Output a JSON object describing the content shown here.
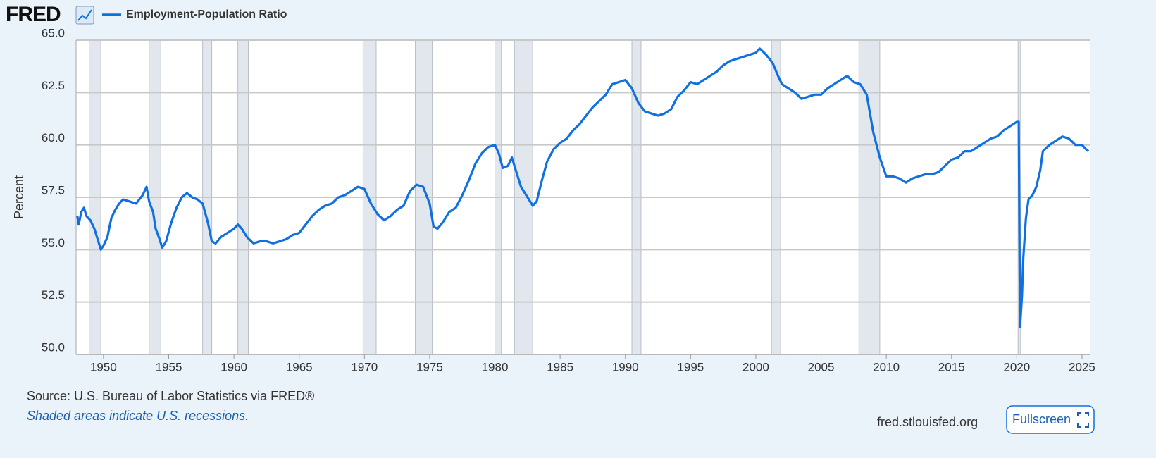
{
  "chart_data": {
    "type": "line",
    "brand": "FRED",
    "ylabel": "Percent",
    "source": "Source: U.S. Bureau of Labor Statistics via FRED®",
    "note": "Shaded areas indicate U.S. recessions.",
    "site": "fred.stlouisfed.org",
    "button": "Fullscreen",
    "xlim": [
      1947.9,
      2025.65
    ],
    "ylim": [
      50,
      65
    ],
    "xticks": [
      1950,
      1955,
      1960,
      1965,
      1970,
      1975,
      1980,
      1985,
      1990,
      1995,
      2000,
      2005,
      2010,
      2015,
      2020,
      2025
    ],
    "yticks": [
      {
        "value": 50,
        "label": "50.0"
      },
      {
        "value": 52.5,
        "label": "52.5"
      },
      {
        "value": 55,
        "label": "55.0"
      },
      {
        "value": 57.5,
        "label": "57.5"
      },
      {
        "value": 60,
        "label": "60.0"
      },
      {
        "value": 62.5,
        "label": "62.5"
      },
      {
        "value": 65,
        "label": "65.0"
      }
    ],
    "grid": true,
    "recessions": [
      [
        1948.9,
        1949.8
      ],
      [
        1953.5,
        1954.4
      ],
      [
        1957.6,
        1958.3
      ],
      [
        1960.3,
        1961.1
      ],
      [
        1969.9,
        1970.9
      ],
      [
        1973.9,
        1975.2
      ],
      [
        1980.0,
        1980.5
      ],
      [
        1981.5,
        1982.9
      ],
      [
        1990.5,
        1991.2
      ],
      [
        2001.2,
        2001.9
      ],
      [
        2007.9,
        2009.5
      ],
      [
        2020.1,
        2020.3
      ]
    ],
    "x": [
      1948.0,
      1948.1,
      1948.3,
      1948.5,
      1948.7,
      1949.0,
      1949.3,
      1949.6,
      1949.8,
      1950.0,
      1950.3,
      1950.6,
      1950.9,
      1951.2,
      1951.5,
      1952.0,
      1952.5,
      1953.0,
      1953.3,
      1953.5,
      1953.8,
      1954.0,
      1954.3,
      1954.5,
      1954.8,
      1955.2,
      1955.6,
      1956.0,
      1956.4,
      1956.8,
      1957.2,
      1957.6,
      1958.0,
      1958.3,
      1958.6,
      1959.0,
      1959.5,
      1960.0,
      1960.3,
      1960.6,
      1961.0,
      1961.5,
      1962.0,
      1962.5,
      1963.0,
      1963.5,
      1964.0,
      1964.5,
      1965.0,
      1965.5,
      1966.0,
      1966.5,
      1967.0,
      1967.5,
      1968.0,
      1968.5,
      1969.0,
      1969.5,
      1970.0,
      1970.5,
      1971.0,
      1971.5,
      1972.0,
      1972.5,
      1973.0,
      1973.5,
      1974.0,
      1974.5,
      1975.0,
      1975.3,
      1975.6,
      1976.0,
      1976.5,
      1977.0,
      1977.5,
      1978.0,
      1978.5,
      1979.0,
      1979.5,
      1980.0,
      1980.3,
      1980.6,
      1981.0,
      1981.3,
      1981.7,
      1982.0,
      1982.5,
      1982.9,
      1983.2,
      1983.6,
      1984.0,
      1984.5,
      1985.0,
      1985.5,
      1986.0,
      1986.5,
      1987.0,
      1987.5,
      1988.0,
      1988.5,
      1989.0,
      1989.5,
      1990.0,
      1990.5,
      1991.0,
      1991.5,
      1992.0,
      1992.5,
      1993.0,
      1993.5,
      1994.0,
      1994.5,
      1995.0,
      1995.5,
      1996.0,
      1996.5,
      1997.0,
      1997.5,
      1998.0,
      1998.5,
      1999.0,
      1999.5,
      2000.0,
      2000.3,
      2000.8,
      2001.3,
      2001.7,
      2002.0,
      2002.5,
      2003.0,
      2003.5,
      2004.0,
      2004.5,
      2005.0,
      2005.5,
      2006.0,
      2006.5,
      2007.0,
      2007.5,
      2008.0,
      2008.5,
      2009.0,
      2009.5,
      2010.0,
      2010.5,
      2011.0,
      2011.5,
      2012.0,
      2012.5,
      2013.0,
      2013.5,
      2014.0,
      2014.5,
      2015.0,
      2015.5,
      2016.0,
      2016.5,
      2017.0,
      2017.5,
      2018.0,
      2018.5,
      2019.0,
      2019.5,
      2020.0,
      2020.15,
      2020.25,
      2020.4,
      2020.5,
      2020.7,
      2020.9,
      2021.2,
      2021.5,
      2021.8,
      2022.0,
      2022.5,
      2023.0,
      2023.5,
      2024.0,
      2024.5,
      2025.0,
      2025.3,
      2025.5
    ],
    "series": [
      {
        "name": "Employment-Population Ratio",
        "color": "#1170e0",
        "values": [
          56.6,
          56.2,
          56.8,
          57.0,
          56.6,
          56.4,
          56.0,
          55.4,
          55.0,
          55.2,
          55.6,
          56.5,
          56.9,
          57.2,
          57.4,
          57.3,
          57.2,
          57.6,
          58.0,
          57.3,
          56.8,
          56.0,
          55.5,
          55.1,
          55.4,
          56.3,
          57.0,
          57.5,
          57.7,
          57.5,
          57.4,
          57.2,
          56.3,
          55.4,
          55.3,
          55.6,
          55.8,
          56.0,
          56.2,
          56.0,
          55.6,
          55.3,
          55.4,
          55.4,
          55.3,
          55.4,
          55.5,
          55.7,
          55.8,
          56.2,
          56.6,
          56.9,
          57.1,
          57.2,
          57.5,
          57.6,
          57.8,
          58.0,
          57.9,
          57.2,
          56.7,
          56.4,
          56.6,
          56.9,
          57.1,
          57.8,
          58.1,
          58.0,
          57.2,
          56.1,
          56.0,
          56.3,
          56.8,
          57.0,
          57.6,
          58.3,
          59.1,
          59.6,
          59.9,
          60.0,
          59.6,
          58.9,
          59.0,
          59.4,
          58.6,
          58.0,
          57.5,
          57.1,
          57.3,
          58.3,
          59.2,
          59.8,
          60.1,
          60.3,
          60.7,
          61.0,
          61.4,
          61.8,
          62.1,
          62.4,
          62.9,
          63.0,
          63.1,
          62.7,
          62.0,
          61.6,
          61.5,
          61.4,
          61.5,
          61.7,
          62.3,
          62.6,
          63.0,
          62.9,
          63.1,
          63.3,
          63.5,
          63.8,
          64.0,
          64.1,
          64.2,
          64.3,
          64.4,
          64.6,
          64.3,
          63.9,
          63.3,
          62.9,
          62.7,
          62.5,
          62.2,
          62.3,
          62.4,
          62.4,
          62.7,
          62.9,
          63.1,
          63.3,
          63.0,
          62.9,
          62.4,
          60.6,
          59.4,
          58.5,
          58.5,
          58.4,
          58.2,
          58.4,
          58.5,
          58.6,
          58.6,
          58.7,
          59.0,
          59.3,
          59.4,
          59.7,
          59.7,
          59.9,
          60.1,
          60.3,
          60.4,
          60.7,
          60.9,
          61.1,
          61.1,
          51.3,
          52.8,
          54.6,
          56.5,
          57.4,
          57.6,
          58.0,
          58.8,
          59.7,
          60.0,
          60.2,
          60.4,
          60.3,
          60.0,
          60.0,
          59.8,
          59.7
        ]
      }
    ]
  }
}
